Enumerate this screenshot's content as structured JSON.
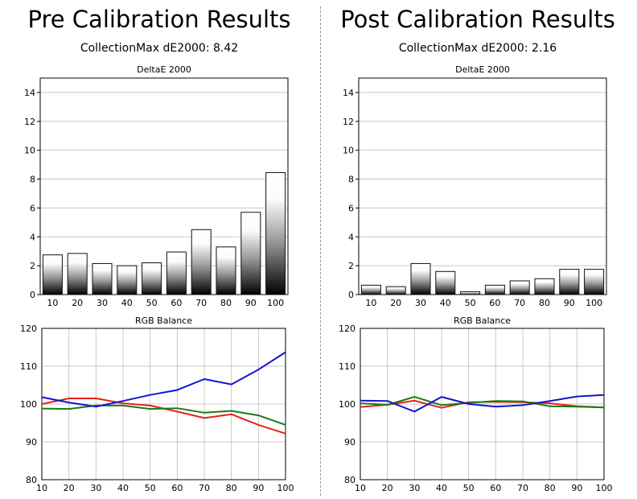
{
  "panels": [
    {
      "title": "Pre Calibration Results",
      "subtitle": "CollectionMax dE2000: 8.42"
    },
    {
      "title": "Post Calibration Results",
      "subtitle": "CollectionMax dE2000: 2.16"
    }
  ],
  "colors": {
    "red": "#e8201c",
    "green": "#1b7a14",
    "blue": "#1414d2",
    "grid": "#c8c8c8"
  },
  "chart_data": [
    {
      "type": "bar",
      "title": "DeltaE 2000",
      "categories": [
        "10",
        "20",
        "30",
        "40",
        "50",
        "60",
        "70",
        "80",
        "90",
        "100"
      ],
      "values": [
        2.75,
        2.85,
        2.15,
        2.0,
        2.2,
        2.95,
        4.5,
        3.3,
        5.7,
        8.45
      ],
      "ylim": [
        0,
        15
      ],
      "yticks": [
        0,
        2,
        4,
        6,
        8,
        10,
        12,
        14
      ],
      "grid": true
    },
    {
      "type": "line",
      "title": "RGB Balance",
      "x": [
        10,
        20,
        30,
        40,
        50,
        60,
        70,
        80,
        90,
        100
      ],
      "ylim": [
        80,
        120
      ],
      "yticks": [
        80,
        90,
        100,
        110,
        120
      ],
      "grid": true,
      "series": [
        {
          "color": "red",
          "values": [
            100.0,
            101.5,
            101.5,
            100.2,
            99.6,
            98.0,
            96.3,
            97.3,
            94.5,
            92.2
          ]
        },
        {
          "color": "green",
          "values": [
            98.8,
            98.7,
            99.6,
            99.6,
            98.7,
            98.9,
            97.7,
            98.2,
            97.0,
            94.5
          ]
        },
        {
          "color": "blue",
          "values": [
            101.8,
            100.4,
            99.3,
            100.8,
            102.4,
            103.7,
            106.6,
            105.2,
            109.1,
            113.7
          ]
        }
      ]
    },
    {
      "type": "bar",
      "title": "DeltaE 2000",
      "categories": [
        "10",
        "20",
        "30",
        "40",
        "50",
        "60",
        "70",
        "80",
        "90",
        "100"
      ],
      "values": [
        0.65,
        0.55,
        2.15,
        1.6,
        0.2,
        0.65,
        0.95,
        1.1,
        1.75,
        1.75
      ],
      "ylim": [
        0,
        15
      ],
      "yticks": [
        0,
        2,
        4,
        6,
        8,
        10,
        12,
        14
      ],
      "grid": true
    },
    {
      "type": "line",
      "title": "RGB Balance",
      "x": [
        10,
        20,
        30,
        40,
        50,
        60,
        70,
        80,
        90,
        100
      ],
      "ylim": [
        80,
        120
      ],
      "yticks": [
        80,
        90,
        100,
        110,
        120
      ],
      "grid": true,
      "series": [
        {
          "color": "red",
          "values": [
            99.2,
            99.8,
            100.9,
            99.0,
            100.5,
            100.6,
            100.5,
            100.2,
            99.4,
            99.1
          ]
        },
        {
          "color": "green",
          "values": [
            100.2,
            99.8,
            101.9,
            99.7,
            100.3,
            100.8,
            100.7,
            99.4,
            99.3,
            99.1
          ]
        },
        {
          "color": "blue",
          "values": [
            100.9,
            100.8,
            98.0,
            101.9,
            100.0,
            99.3,
            99.7,
            100.8,
            102.0,
            102.4
          ]
        }
      ]
    }
  ]
}
